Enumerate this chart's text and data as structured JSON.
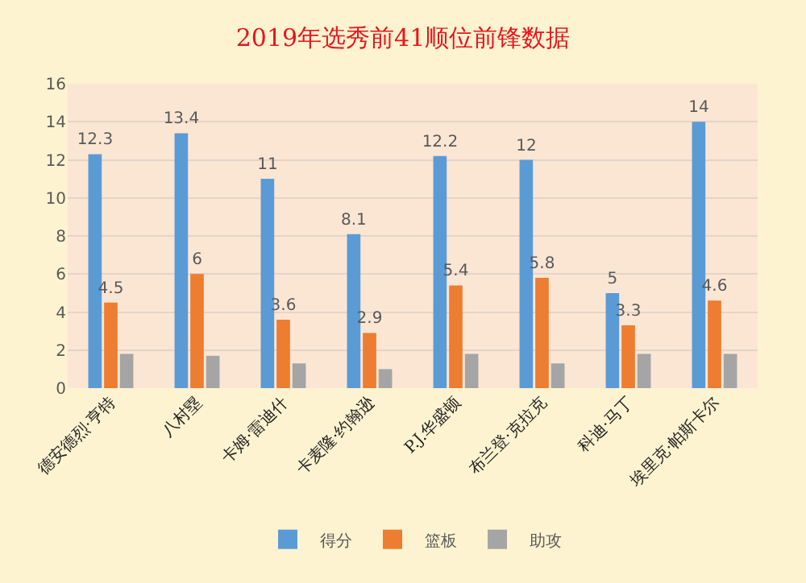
{
  "chart_data": {
    "type": "bar",
    "title": "2019年选秀前41顺位前锋数据",
    "categories": [
      "德安德烈·亨特",
      "八村塁",
      "卡姆·雷迪什",
      "卡麦隆·约翰逊",
      "P.J.华盛顿",
      "布兰登·克拉克",
      "科迪·马丁",
      "埃里克·帕斯卡尔"
    ],
    "series": [
      {
        "name": "得分",
        "color": "#5b9bd5",
        "values": [
          12.3,
          13.4,
          11,
          8.1,
          12.2,
          12,
          5,
          14
        ],
        "value_labels": [
          "12.3",
          "13.4",
          "11",
          "8.1",
          "12.2",
          "12",
          "5",
          "14"
        ]
      },
      {
        "name": "篮板",
        "color": "#ed7d31",
        "values": [
          4.5,
          6,
          3.6,
          2.9,
          5.4,
          5.8,
          3.3,
          4.6
        ],
        "value_labels": [
          "4.5",
          "6",
          "3.6",
          "2.9",
          "5.4",
          "5.8",
          "3.3",
          "4.6"
        ]
      },
      {
        "name": "助攻",
        "color": "#a5a5a5",
        "values": [
          1.8,
          1.7,
          1.3,
          1.0,
          1.8,
          1.3,
          1.8,
          1.8
        ]
      }
    ],
    "ylim": [
      0,
      16
    ],
    "yticks": [
      0,
      2,
      4,
      6,
      8,
      10,
      12,
      14,
      16
    ],
    "grid": "y",
    "legend": "bottom"
  }
}
